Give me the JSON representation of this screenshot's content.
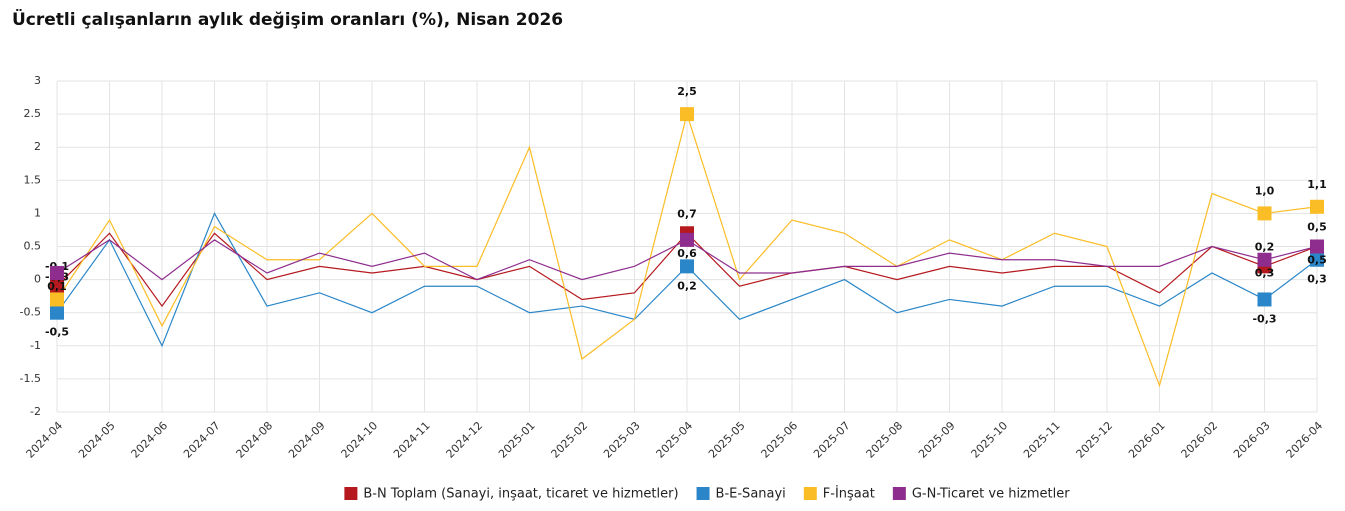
{
  "chart_data": {
    "type": "line",
    "title": "Ücretli çalışanların aylık değişim oranları (%), Nisan 2026",
    "categories": [
      "2024-04",
      "2024-05",
      "2024-06",
      "2024-07",
      "2024-08",
      "2024-09",
      "2024-10",
      "2024-11",
      "2024-12",
      "2025-01",
      "2025-02",
      "2025-03",
      "2025-04",
      "2025-05",
      "2025-06",
      "2025-07",
      "2025-08",
      "2025-09",
      "2025-10",
      "2025-11",
      "2025-12",
      "2026-01",
      "2026-02",
      "2026-03",
      "2026-04"
    ],
    "series": [
      {
        "name": "B-N Toplam (Sanayi, inşaat, ticaret ve hizmetler)",
        "color": "#b5191e",
        "values": [
          -0.1,
          0.7,
          -0.4,
          0.7,
          0.0,
          0.2,
          0.1,
          0.2,
          0.0,
          0.2,
          -0.3,
          -0.2,
          0.7,
          -0.1,
          0.1,
          0.2,
          0.0,
          0.2,
          0.1,
          0.2,
          0.2,
          -0.2,
          0.5,
          0.2,
          0.5
        ],
        "value_labels": [
          "-0,1",
          null,
          null,
          null,
          null,
          null,
          null,
          null,
          null,
          null,
          null,
          null,
          "0,7",
          null,
          null,
          null,
          null,
          null,
          null,
          null,
          null,
          null,
          null,
          "0,2",
          "0,5"
        ]
      },
      {
        "name": "B-E-Sanayi",
        "color": "#2a86c8",
        "values": [
          -0.5,
          0.6,
          -1.0,
          1.0,
          -0.4,
          -0.2,
          -0.5,
          -0.1,
          -0.1,
          -0.5,
          -0.4,
          -0.6,
          0.2,
          -0.6,
          -0.3,
          0.0,
          -0.5,
          -0.3,
          -0.4,
          -0.1,
          -0.1,
          -0.4,
          0.1,
          -0.3,
          0.3
        ],
        "value_labels": [
          "-0,5",
          null,
          null,
          null,
          null,
          null,
          null,
          null,
          null,
          null,
          null,
          null,
          "0,2",
          null,
          null,
          null,
          null,
          null,
          null,
          null,
          null,
          null,
          null,
          "-0,3",
          "0,3"
        ]
      },
      {
        "name": "F-İnşaat",
        "color": "#fbbd25",
        "values": [
          -0.3,
          0.9,
          -0.7,
          0.8,
          0.3,
          0.3,
          1.0,
          0.2,
          0.2,
          2.0,
          -1.2,
          -0.6,
          2.5,
          0.0,
          0.9,
          0.7,
          0.2,
          0.6,
          0.3,
          0.7,
          0.5,
          -1.6,
          1.3,
          1.0,
          1.1
        ],
        "value_labels": [
          "-0,3",
          null,
          null,
          null,
          null,
          null,
          null,
          null,
          null,
          null,
          null,
          null,
          "2,5",
          null,
          null,
          null,
          null,
          null,
          null,
          null,
          null,
          null,
          null,
          "1,0",
          "1,1"
        ]
      },
      {
        "name": "G-N-Ticaret ve hizmetler",
        "color": "#8e2d8e",
        "values": [
          0.1,
          0.6,
          0.0,
          0.6,
          0.1,
          0.4,
          0.2,
          0.4,
          0.0,
          0.3,
          0.0,
          0.2,
          0.6,
          0.1,
          0.1,
          0.2,
          0.2,
          0.4,
          0.3,
          0.3,
          0.2,
          0.2,
          0.5,
          0.3,
          0.5
        ],
        "value_labels": [
          "0,1",
          null,
          null,
          null,
          null,
          null,
          null,
          null,
          null,
          null,
          null,
          null,
          "0,6",
          null,
          null,
          null,
          null,
          null,
          null,
          null,
          null,
          null,
          null,
          "0,3",
          "0,5"
        ]
      }
    ],
    "ylim": [
      -2,
      3
    ],
    "yticks": [
      -2,
      -1.5,
      -1,
      -0.5,
      0,
      0.5,
      1,
      1.5,
      2,
      2.5,
      3
    ],
    "grid": true
  }
}
